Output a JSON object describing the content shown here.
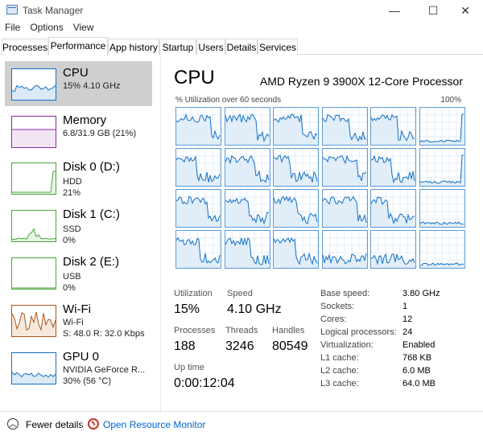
{
  "window": {
    "title": "Task Manager",
    "minimize": "—",
    "maximize": "☐",
    "close": "✕"
  },
  "menu": [
    "File",
    "Options",
    "View"
  ],
  "tabs": [
    "Processes",
    "Performance",
    "App history",
    "Startup",
    "Users",
    "Details",
    "Services"
  ],
  "active_tab": "Performance",
  "sidebar": [
    {
      "name": "CPU",
      "sub1": "15% 4.10 GHz",
      "sub2": "",
      "sub3": "",
      "color": "#1170c6",
      "fill": "#dbeaf6",
      "selected": true
    },
    {
      "name": "Memory",
      "sub1": "6.8/31.9 GB (21%)",
      "sub2": "",
      "sub3": "",
      "color": "#8b2a9b",
      "fill": "#f2e6f5",
      "selected": false
    },
    {
      "name": "Disk 0 (D:)",
      "sub1": "HDD",
      "sub2": "21%",
      "sub3": "",
      "color": "#4ca53c",
      "fill": "#e8f5e5",
      "selected": false
    },
    {
      "name": "Disk 1 (C:)",
      "sub1": "SSD",
      "sub2": "0%",
      "sub3": "",
      "color": "#4ca53c",
      "fill": "#e8f5e5",
      "selected": false
    },
    {
      "name": "Disk 2 (E:)",
      "sub1": "USB",
      "sub2": "0%",
      "sub3": "",
      "color": "#4ca53c",
      "fill": "#e8f5e5",
      "selected": false
    },
    {
      "name": "Wi-Fi",
      "sub1": "Wi-Fi",
      "sub2": "S: 48.0  R: 32.0 Kbps",
      "sub3": "",
      "color": "#a8561f",
      "fill": "#f7e8dc",
      "selected": false
    },
    {
      "name": "GPU 0",
      "sub1": "NVIDIA GeForce R...",
      "sub2": "30% (56 °C)",
      "sub3": "",
      "color": "#1170c6",
      "fill": "#dbeaf6",
      "selected": false
    }
  ],
  "main": {
    "title": "CPU",
    "model": "AMD Ryzen 9 3900X 12-Core Processor",
    "util_label": "% Utilization over 60 seconds",
    "util_max": "100%",
    "stats": {
      "utilization_label": "Utilization",
      "utilization": "15%",
      "speed_label": "Speed",
      "speed": "4.10 GHz",
      "processes_label": "Processes",
      "processes": "188",
      "threads_label": "Threads",
      "threads": "3246",
      "handles_label": "Handles",
      "handles": "80549",
      "uptime_label": "Up time",
      "uptime": "0:00:12:04"
    },
    "specs": [
      {
        "label": "Base speed:",
        "value": "3.80 GHz"
      },
      {
        "label": "Sockets:",
        "value": "1"
      },
      {
        "label": "Cores:",
        "value": "12"
      },
      {
        "label": "Logical processors:",
        "value": "24"
      },
      {
        "label": "Virtualization:",
        "value": "Enabled"
      },
      {
        "label": "L1 cache:",
        "value": "768 KB"
      },
      {
        "label": "L2 cache:",
        "value": "6.0 MB"
      },
      {
        "label": "L3 cache:",
        "value": "64.0 MB"
      }
    ]
  },
  "footer": {
    "fewer_details": "Fewer details",
    "open_resource_monitor": "Open Resource Monitor"
  },
  "colors": {
    "cpu_line": "#1170c6",
    "cpu_fill": "#dbeaf6",
    "grid_border": "#5b9bd5"
  }
}
